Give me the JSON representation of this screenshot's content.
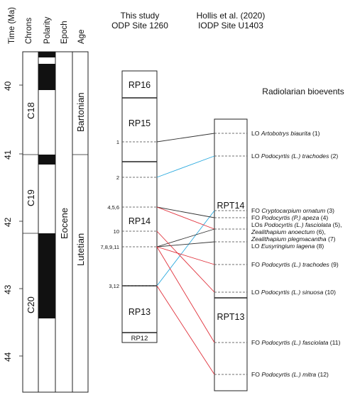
{
  "headers": {
    "time": "Time (Ma)",
    "chrons": "Chrons",
    "polarity": "Polarity",
    "epoch": "Epoch",
    "age": "Age"
  },
  "study_title": [
    "This study",
    "ODP Site 1260"
  ],
  "ref_title": [
    "Hollis et al. (2020)",
    "IODP Site U1403"
  ],
  "bioevents_title": "Radiolarian bioevents",
  "time_ticks": [
    "40",
    "41",
    "42",
    "43",
    "44"
  ],
  "chrons": [
    "C18",
    "C19",
    "C20"
  ],
  "epoch": "Eocene",
  "ages": [
    "Bartonian",
    "Lutetian"
  ],
  "study_zones": [
    "RP16",
    "RP15",
    "RP14",
    "RP13",
    "RP12"
  ],
  "study_levels": [
    "1",
    "2",
    "4,5,6",
    "10",
    "7,8,9,11",
    "3,12"
  ],
  "ref_zones": [
    "RPT14",
    "RPT13"
  ],
  "events": [
    {
      "prefix": "LO ",
      "taxon": "Artobotrys biaurita",
      "suffix": " (1)"
    },
    {
      "prefix": "LO ",
      "taxon": "Podocyrtis (L.) trachodes",
      "suffix": " (2)"
    },
    {
      "prefix": "FO ",
      "taxon": "Cryptocarpium ornatum",
      "suffix": " (3)"
    },
    {
      "prefix": "FO ",
      "taxon": "Podocyrtis (P.) apeza",
      "suffix": " (4)"
    },
    {
      "prefix": "LOs ",
      "taxon": "Podocyrtis (L.) fasciolata",
      "suffix": " (5),"
    },
    {
      "prefix": "",
      "taxon": "Zealithapium anoectum",
      "suffix": " (6),"
    },
    {
      "prefix": "",
      "taxon": "Zealithapium plegmacantha",
      "suffix": " (7)"
    },
    {
      "prefix": "LO ",
      "taxon": "Eusyringium lagena",
      "suffix": " (8)"
    },
    {
      "prefix": "FO ",
      "taxon": "Podocyrtis (L.) trachodes",
      "suffix": " (9)"
    },
    {
      "prefix": "LO ",
      "taxon": "Podocyrtis (L.) sinuosa",
      "suffix": " (10)"
    },
    {
      "prefix": "FO ",
      "taxon": "Podocyrtis (L.) fasciolata",
      "suffix": " (11)"
    },
    {
      "prefix": "FO ",
      "taxon": "Podocyrtis (L.) mitra",
      "suffix": " (12)"
    }
  ],
  "colors": {
    "black_line": "#333333",
    "blue_line": "#2aa9de",
    "red_line": "#e0303a",
    "polarity_fill": "#111111"
  }
}
